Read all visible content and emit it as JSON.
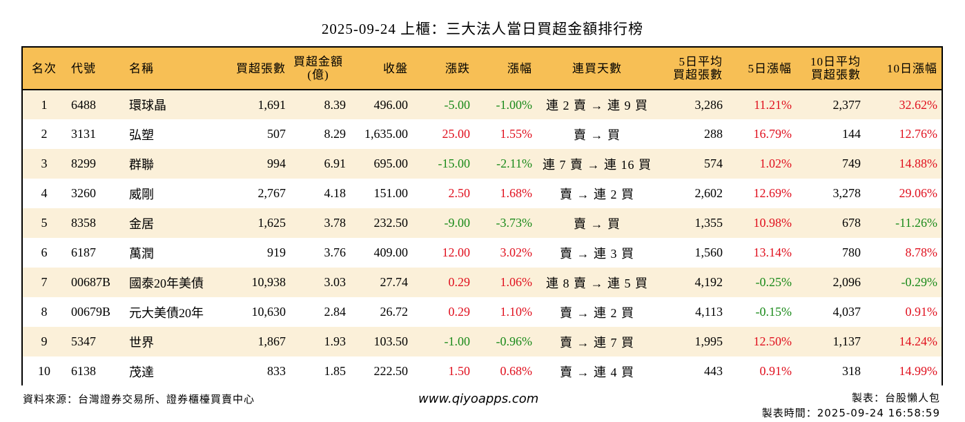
{
  "title": "2025-09-24 上櫃：三大法人當日買超金額排行榜",
  "colors": {
    "header_bg": "#f7bf55",
    "row_odd": "#fbf0d9",
    "row_even": "#ffffff",
    "up": "#e0101e",
    "down": "#1a8a1a"
  },
  "table": {
    "headers": [
      "名次",
      "代號",
      "名稱",
      "買超張數",
      "買超金額\n(億)",
      "收盤",
      "漲跌",
      "漲幅",
      "連買天數",
      "5日平均\n買超張數",
      "5日漲幅",
      "10日平均\n買超張數",
      "10日漲幅"
    ],
    "header_lines": {
      "amount": [
        "買超金額",
        "(億)"
      ],
      "avg5": [
        "5日平均",
        "買超張數"
      ],
      "avg10": [
        "10日平均",
        "買超張數"
      ]
    },
    "rows": [
      {
        "rank": "1",
        "code": "6488",
        "name": "環球晶",
        "vol": "1,691",
        "amt": "8.39",
        "close": "496.00",
        "chg": "-5.00",
        "pct": "-1.00%",
        "streak": "連 2 賣 → 連 9 買",
        "avg5": "3,286",
        "pct5": "11.21%",
        "avg10": "2,377",
        "pct10": "32.62%"
      },
      {
        "rank": "2",
        "code": "3131",
        "name": "弘塑",
        "vol": "507",
        "amt": "8.29",
        "close": "1,635.00",
        "chg": "25.00",
        "pct": "1.55%",
        "streak": "賣 → 買",
        "avg5": "288",
        "pct5": "16.79%",
        "avg10": "144",
        "pct10": "12.76%"
      },
      {
        "rank": "3",
        "code": "8299",
        "name": "群聯",
        "vol": "994",
        "amt": "6.91",
        "close": "695.00",
        "chg": "-15.00",
        "pct": "-2.11%",
        "streak": "連 7 賣 → 連 16 買",
        "avg5": "574",
        "pct5": "1.02%",
        "avg10": "749",
        "pct10": "14.88%"
      },
      {
        "rank": "4",
        "code": "3260",
        "name": "威剛",
        "vol": "2,767",
        "amt": "4.18",
        "close": "151.00",
        "chg": "2.50",
        "pct": "1.68%",
        "streak": "賣 → 連 2 買",
        "avg5": "2,602",
        "pct5": "12.69%",
        "avg10": "3,278",
        "pct10": "29.06%"
      },
      {
        "rank": "5",
        "code": "8358",
        "name": "金居",
        "vol": "1,625",
        "amt": "3.78",
        "close": "232.50",
        "chg": "-9.00",
        "pct": "-3.73%",
        "streak": "賣 → 買",
        "avg5": "1,355",
        "pct5": "10.98%",
        "avg10": "678",
        "pct10": "-11.26%"
      },
      {
        "rank": "6",
        "code": "6187",
        "name": "萬潤",
        "vol": "919",
        "amt": "3.76",
        "close": "409.00",
        "chg": "12.00",
        "pct": "3.02%",
        "streak": "賣 → 連 3 買",
        "avg5": "1,560",
        "pct5": "13.14%",
        "avg10": "780",
        "pct10": "8.78%"
      },
      {
        "rank": "7",
        "code": "00687B",
        "name": "國泰20年美債",
        "vol": "10,938",
        "amt": "3.03",
        "close": "27.74",
        "chg": "0.29",
        "pct": "1.06%",
        "streak": "連 8 賣 → 連 5 買",
        "avg5": "4,192",
        "pct5": "-0.25%",
        "avg10": "2,096",
        "pct10": "-0.29%"
      },
      {
        "rank": "8",
        "code": "00679B",
        "name": "元大美債20年",
        "vol": "10,630",
        "amt": "2.84",
        "close": "26.72",
        "chg": "0.29",
        "pct": "1.10%",
        "streak": "賣 → 連 2 買",
        "avg5": "4,113",
        "pct5": "-0.15%",
        "avg10": "4,037",
        "pct10": "0.91%"
      },
      {
        "rank": "9",
        "code": "5347",
        "name": "世界",
        "vol": "1,867",
        "amt": "1.93",
        "close": "103.50",
        "chg": "-1.00",
        "pct": "-0.96%",
        "streak": "賣 → 連 7 買",
        "avg5": "1,995",
        "pct5": "12.50%",
        "avg10": "1,137",
        "pct10": "14.24%"
      },
      {
        "rank": "10",
        "code": "6138",
        "name": "茂達",
        "vol": "833",
        "amt": "1.85",
        "close": "222.50",
        "chg": "1.50",
        "pct": "0.68%",
        "streak": "賣 → 連 4 買",
        "avg5": "443",
        "pct5": "0.91%",
        "avg10": "318",
        "pct10": "14.99%"
      }
    ]
  },
  "footer": {
    "source": "資料來源：台灣證券交易所、證券櫃檯買賣中心",
    "url": "www.qiyoapps.com",
    "maker": "製表：台股懶人包",
    "made_time": "製表時間：2025-09-24 16:58:59"
  }
}
